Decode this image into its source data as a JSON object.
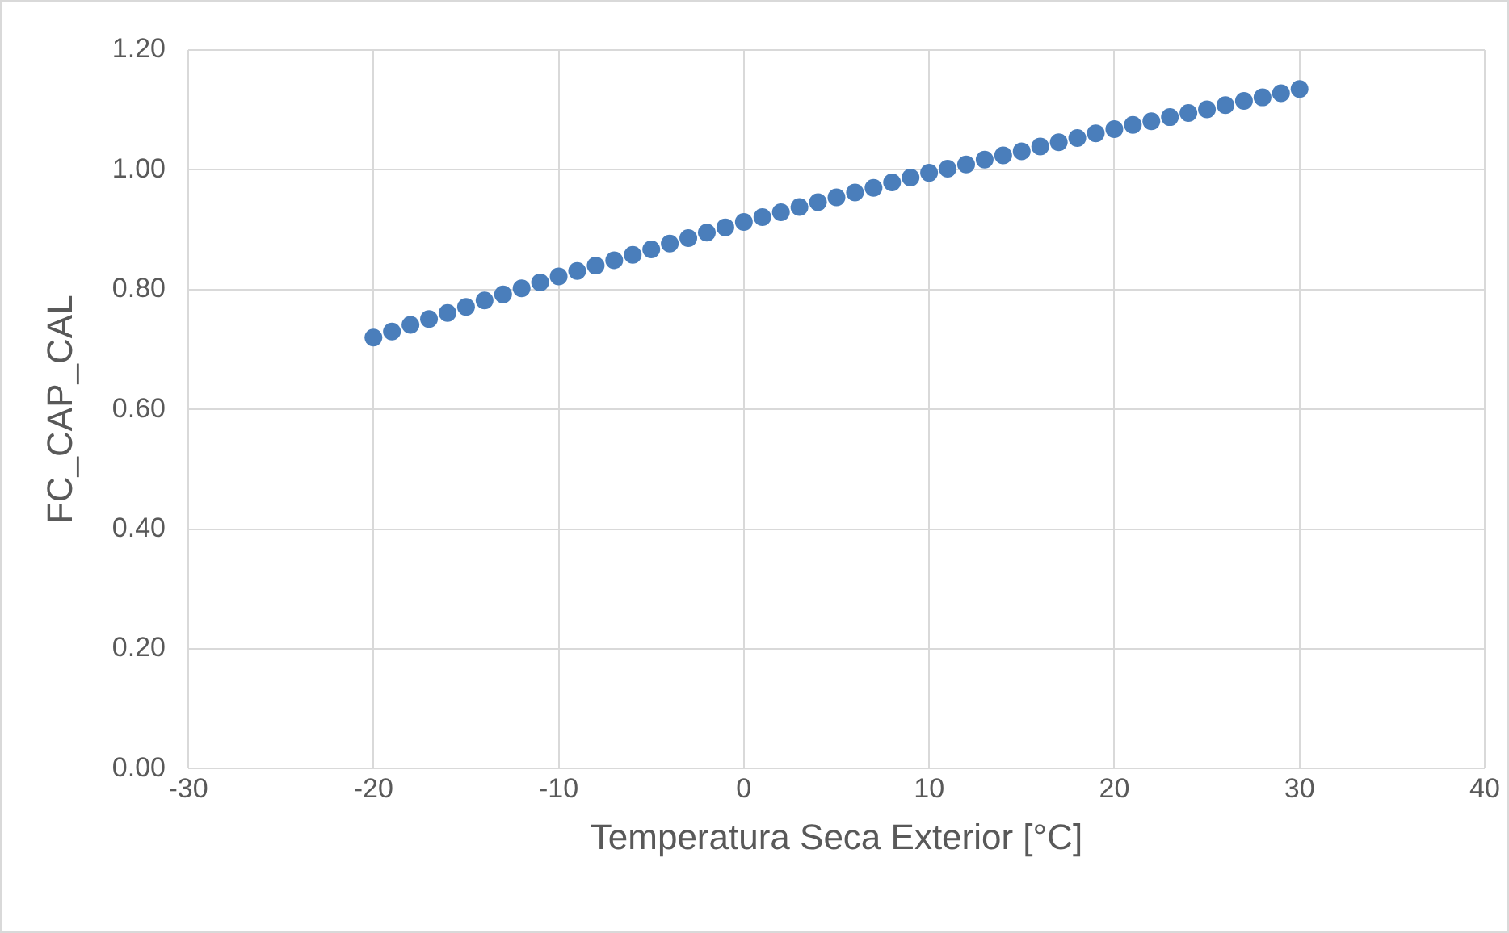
{
  "chart_data": {
    "type": "scatter",
    "xlabel": "Temperatura Seca Exterior [°C]",
    "ylabel": "FC_CAP_CAL",
    "xlim": [
      -30,
      40
    ],
    "xticks": [
      -30,
      -20,
      -10,
      0,
      10,
      20,
      30,
      40
    ],
    "ylim": [
      0,
      1.2
    ],
    "yticks": [
      {
        "value": 0,
        "label": "0.00"
      },
      {
        "value": 0.2,
        "label": "0.20"
      },
      {
        "value": 0.4,
        "label": "0.40"
      },
      {
        "value": 0.6,
        "label": "0.60"
      },
      {
        "value": 0.8,
        "label": "0.80"
      },
      {
        "value": 1,
        "label": "1.00"
      },
      {
        "value": 1.2,
        "label": "1.20"
      }
    ],
    "grid": true,
    "marker": "circle",
    "legend": false,
    "series": [
      {
        "color": "#4a7ebb",
        "x": [
          -20,
          -19,
          -18,
          -17,
          -16,
          -15,
          -14,
          -13,
          -12,
          -11,
          -10,
          -9,
          -8,
          -7,
          -6,
          -5,
          -4,
          -3,
          -2,
          -1,
          0,
          1,
          2,
          3,
          4,
          5,
          6,
          7,
          8,
          9,
          10,
          11,
          12,
          13,
          14,
          15,
          16,
          17,
          18,
          19,
          20,
          21,
          22,
          23,
          24,
          25,
          26,
          27,
          28,
          29,
          30
        ],
        "values": [
          0.72,
          0.73,
          0.741,
          0.751,
          0.761,
          0.771,
          0.782,
          0.792,
          0.802,
          0.812,
          0.822,
          0.831,
          0.84,
          0.849,
          0.858,
          0.867,
          0.877,
          0.886,
          0.895,
          0.904,
          0.913,
          0.921,
          0.929,
          0.938,
          0.946,
          0.954,
          0.962,
          0.97,
          0.979,
          0.987,
          0.995,
          1.002,
          1.009,
          1.017,
          1.024,
          1.031,
          1.039,
          1.046,
          1.053,
          1.061,
          1.068,
          1.075,
          1.081,
          1.088,
          1.095,
          1.101,
          1.108,
          1.115,
          1.121,
          1.128,
          1.135
        ]
      }
    ]
  }
}
